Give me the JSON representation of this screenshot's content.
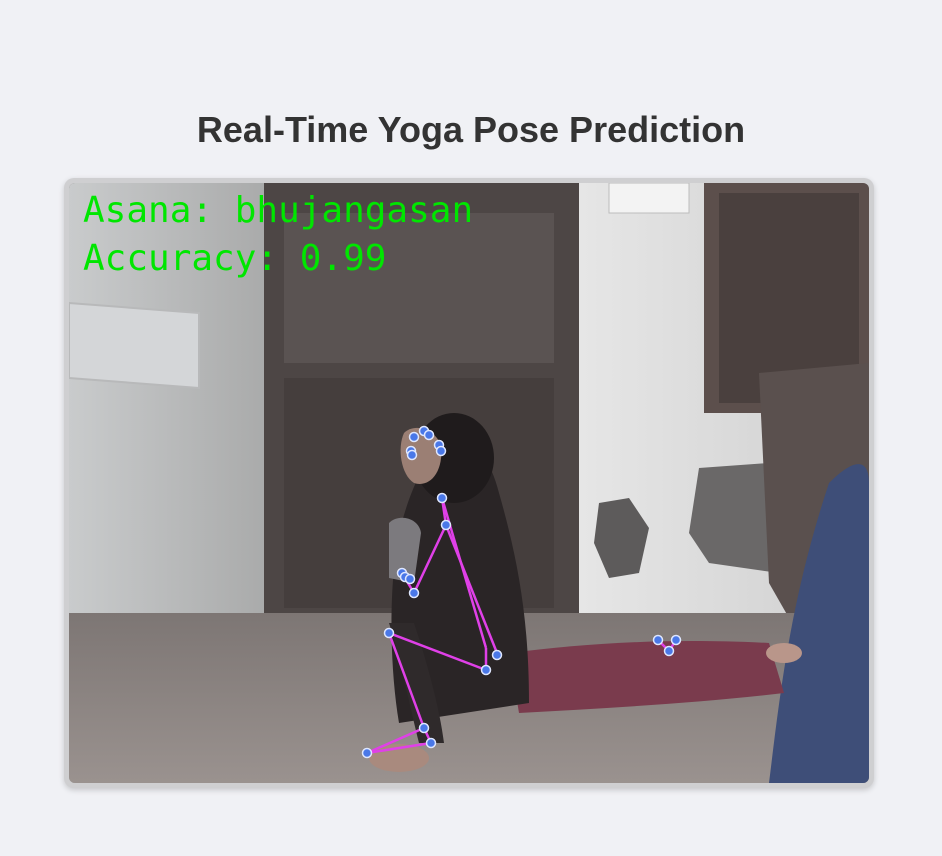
{
  "page": {
    "title": "Real-Time Yoga Pose Prediction"
  },
  "video_feed": {
    "asana_label": "Asana: bhujangasan",
    "accuracy_label": "Accuracy: 0.99",
    "overlay_text_color": "#00e600",
    "skeleton_line_color": "#e040e8",
    "landmark_color": "#4a78e8"
  }
}
